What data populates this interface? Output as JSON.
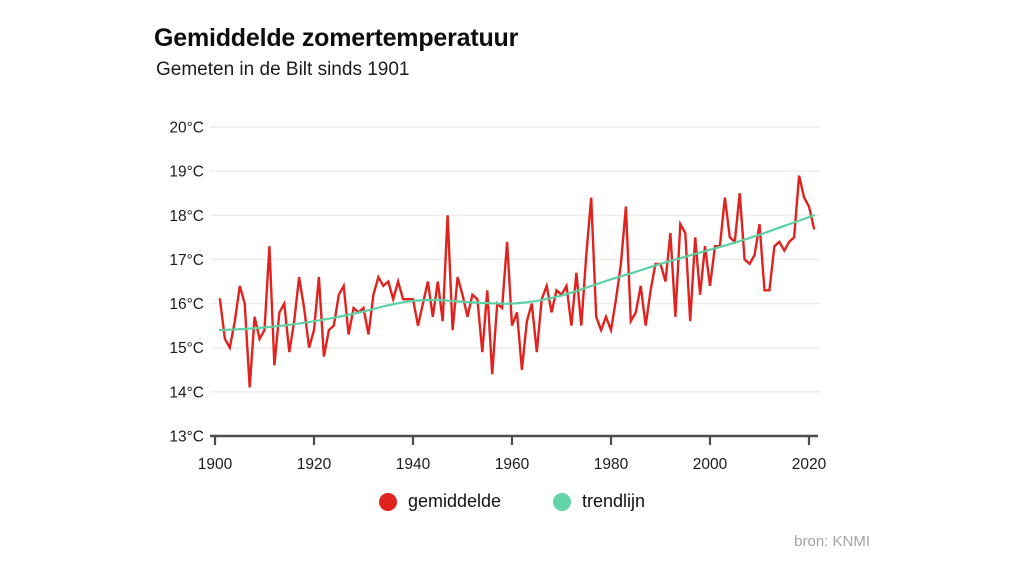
{
  "header": {
    "title": "Gemiddelde zomertemperatuur",
    "subtitle": "Gemeten in de Bilt sinds 1901"
  },
  "legend": {
    "items": [
      {
        "label": "gemiddelde",
        "color": "#e0231e"
      },
      {
        "label": "trendlijn",
        "color": "#63d4a8"
      }
    ]
  },
  "source": "bron: KNMI",
  "colors": {
    "background": "#ffffff",
    "average_line": "#e0231e",
    "trend_line": "#5bd2a6",
    "axis": "#4d4d4d",
    "grid": "#ececec",
    "tick_label": "#1b1b1b",
    "source_text": "#a3a3a3"
  },
  "chart_data": {
    "type": "line",
    "title": "Gemiddelde zomertemperatuur",
    "subtitle": "Gemeten in de Bilt sinds 1901",
    "xlabel": "",
    "ylabel": "",
    "unit": "°C",
    "xlim": [
      1900,
      2022
    ],
    "ylim": [
      13,
      20
    ],
    "x_ticks": [
      1900,
      1920,
      1940,
      1960,
      1980,
      2000,
      2020
    ],
    "y_ticks": [
      13,
      14,
      15,
      16,
      17,
      18,
      19,
      20
    ],
    "y_tick_suffix": "°C",
    "grid": "horizontal-only",
    "legend_position": "bottom-center",
    "source": "bron: KNMI",
    "series": [
      {
        "name": "gemiddelde",
        "type": "line",
        "color": "#e0231e",
        "start_year": 1901,
        "step": 1,
        "values": [
          16.1,
          15.2,
          15.0,
          15.6,
          16.4,
          16.0,
          14.1,
          15.7,
          15.2,
          15.4,
          17.3,
          14.6,
          15.8,
          16.0,
          14.9,
          15.6,
          16.6,
          15.9,
          15.0,
          15.4,
          16.6,
          14.8,
          15.4,
          15.5,
          16.2,
          16.4,
          15.3,
          15.9,
          15.8,
          15.9,
          15.3,
          16.2,
          16.6,
          16.4,
          16.5,
          16.1,
          16.5,
          16.1,
          16.1,
          16.1,
          15.5,
          16.0,
          16.5,
          15.7,
          16.5,
          15.6,
          18.0,
          15.4,
          16.6,
          16.2,
          15.7,
          16.2,
          16.1,
          14.9,
          16.3,
          14.4,
          16.0,
          15.9,
          17.4,
          15.5,
          15.8,
          14.5,
          15.6,
          16.0,
          14.9,
          16.1,
          16.4,
          15.8,
          16.3,
          16.2,
          16.4,
          15.5,
          16.7,
          15.5,
          17.1,
          18.4,
          15.7,
          15.4,
          15.7,
          15.4,
          16.1,
          16.9,
          18.2,
          15.6,
          15.8,
          16.4,
          15.5,
          16.3,
          16.9,
          16.9,
          16.5,
          17.6,
          15.7,
          17.8,
          17.6,
          15.6,
          17.5,
          16.2,
          17.3,
          16.4,
          17.3,
          17.3,
          18.4,
          17.5,
          17.4,
          18.5,
          17.0,
          16.9,
          17.1,
          17.8,
          16.3,
          16.3,
          17.3,
          17.4,
          17.2,
          17.4,
          17.5,
          18.9,
          18.4,
          18.2,
          17.7
        ]
      },
      {
        "name": "trendlijn",
        "type": "smooth-line",
        "color": "#5bd2a6",
        "points": [
          [
            1901,
            15.4
          ],
          [
            1905,
            15.42
          ],
          [
            1910,
            15.46
          ],
          [
            1915,
            15.52
          ],
          [
            1920,
            15.6
          ],
          [
            1925,
            15.7
          ],
          [
            1930,
            15.82
          ],
          [
            1935,
            15.96
          ],
          [
            1940,
            16.06
          ],
          [
            1945,
            16.08
          ],
          [
            1950,
            16.04
          ],
          [
            1955,
            16.01
          ],
          [
            1960,
            16.0
          ],
          [
            1965,
            16.06
          ],
          [
            1970,
            16.18
          ],
          [
            1975,
            16.36
          ],
          [
            1980,
            16.55
          ],
          [
            1985,
            16.72
          ],
          [
            1990,
            16.9
          ],
          [
            1995,
            17.06
          ],
          [
            2000,
            17.22
          ],
          [
            2005,
            17.38
          ],
          [
            2010,
            17.56
          ],
          [
            2015,
            17.76
          ],
          [
            2021,
            18.0
          ]
        ]
      }
    ]
  }
}
